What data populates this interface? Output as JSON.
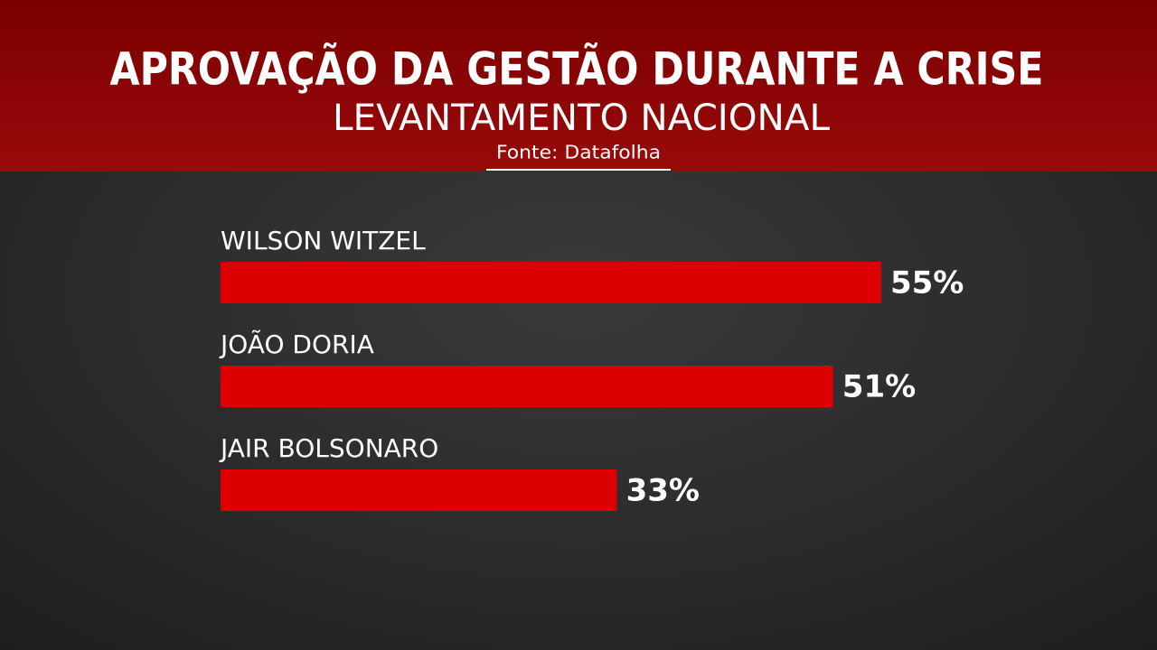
{
  "chart_data": {
    "type": "bar",
    "orientation": "horizontal",
    "title": "APROVAÇÃO DA GESTÃO DURANTE A CRISE",
    "subtitle": "LEVANTAMENTO NACIONAL",
    "source": "Fonte: Datafolha",
    "categories": [
      "WILSON WITZEL",
      "JOÃO DORIA",
      "JAIR BOLSONARO"
    ],
    "values": [
      55,
      51,
      33
    ],
    "value_labels": [
      "55%",
      "51%",
      "33%"
    ],
    "color": "#dd0000"
  }
}
